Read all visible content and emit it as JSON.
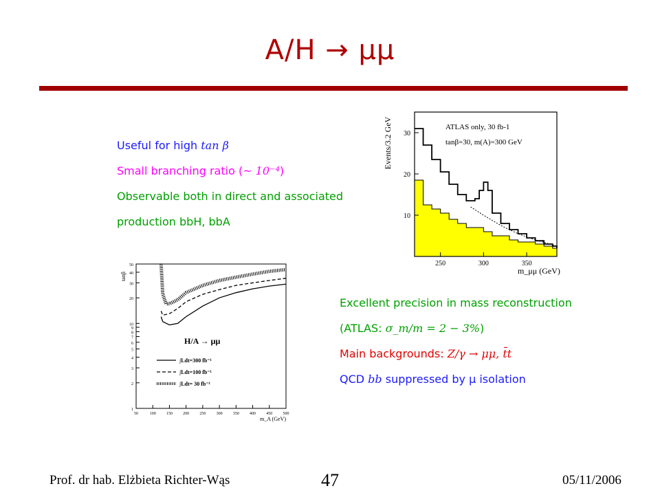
{
  "slide": {
    "title": "A/H → μμ",
    "bullets_top": [
      {
        "text_before": "Useful for high ",
        "math": "tan β",
        "text_after": "",
        "color": "#1a1aff"
      },
      {
        "text_before": "Small branching ratio (",
        "math": "~ 10⁻⁴",
        "text_after": ")",
        "color": "#ff00ff"
      },
      {
        "text_before": "Observable both in direct and associated",
        "math": "",
        "text_after": "",
        "color": "#00a000"
      },
      {
        "text_before": "production bbH, bbA",
        "math": "",
        "text_after": "",
        "color": "#00a000"
      }
    ],
    "bullets_bottom": [
      {
        "text_before": "Excellent precision in mass reconstruction",
        "math": "",
        "text_after": "",
        "color": "#00a000"
      },
      {
        "text_before": "(ATLAS: ",
        "math": "σ_m/m = 2 − 3%",
        "text_after": ")",
        "color": "#00a000"
      },
      {
        "text_before": "Main backgrounds: ",
        "math": "Z/γ → μμ, t̄t",
        "text_after": "",
        "color": "#e00000"
      },
      {
        "text_before": "QCD ",
        "math": "bb",
        "text_after": " suppressed by μ isolation",
        "color": "#1a1aff"
      }
    ],
    "footer": {
      "author": "Prof. dr hab. Elżbieta Richter-Wąs",
      "page": "47",
      "date": "05/11/2006"
    },
    "colors": {
      "title": "#b00000",
      "rule": "#a00000",
      "histogram_fill": "#ffff00"
    }
  },
  "chart_data": [
    {
      "type": "area",
      "annotation_lines": [
        "ATLAS only, 30 fb-1",
        "tanβ=30, m(A)=300 GeV"
      ],
      "ylabel": "Events/3.2 GeV",
      "xlabel": "m_μμ (GeV)",
      "xlim": [
        220,
        385
      ],
      "ylim": [
        0,
        35
      ],
      "xticks": [
        250,
        300,
        350
      ],
      "yticks": [
        0,
        10,
        20,
        30
      ],
      "series": [
        {
          "x": [
            220,
            230,
            240,
            250,
            260,
            270,
            280,
            290,
            295,
            300,
            305,
            310,
            320,
            330,
            340,
            350,
            360,
            370,
            380,
            385
          ],
          "y": [
            31,
            27,
            23.5,
            20.5,
            17.5,
            15,
            13.5,
            14,
            16,
            18,
            16,
            10.5,
            8,
            6.5,
            5.5,
            4.5,
            3.8,
            3,
            2.5,
            2
          ]
        },
        {
          "x": [
            220,
            230,
            240,
            250,
            260,
            270,
            280,
            290,
            300,
            310,
            320,
            330,
            340,
            350,
            360,
            370,
            380,
            385
          ],
          "y": [
            18.5,
            12.5,
            11.5,
            10.5,
            9,
            8,
            7,
            7,
            6,
            5,
            5,
            4,
            3.5,
            3.5,
            3,
            2.5,
            2,
            2
          ]
        },
        {
          "x": [
            285,
            300,
            320,
            340,
            360,
            385
          ],
          "y": [
            12,
            10,
            7.5,
            5.5,
            4,
            2.5
          ]
        }
      ]
    },
    {
      "type": "line",
      "ylabel": "tanβ",
      "xlabel": "m_A (GeV)",
      "inset_title": "H/A → μμ",
      "xlim": [
        50,
        500
      ],
      "ylim": [
        1,
        50
      ],
      "yscale": "log",
      "xticks": [
        50,
        100,
        150,
        200,
        250,
        300,
        350,
        400,
        450,
        500
      ],
      "yticks": [
        1,
        2,
        3,
        4,
        5,
        6,
        7,
        8,
        9,
        10,
        20,
        30,
        40,
        50
      ],
      "series": [
        {
          "name": "∫Ldt=300 fb⁻¹",
          "style": "solid",
          "x": [
            125,
            130,
            150,
            175,
            200,
            250,
            300,
            350,
            400,
            450,
            500
          ],
          "y": [
            12,
            10.5,
            9.6,
            10,
            12,
            16,
            20,
            23,
            25.5,
            27.5,
            29
          ]
        },
        {
          "name": "∫Ldt=100 fb⁻¹",
          "style": "dashed",
          "x": [
            125,
            130,
            150,
            175,
            200,
            250,
            300,
            350,
            400,
            450,
            500
          ],
          "y": [
            14,
            12.5,
            13,
            15,
            18,
            22,
            25,
            28,
            30,
            32,
            34
          ]
        },
        {
          "name": "∫Ldt= 30 fb⁻¹",
          "style": "hatched",
          "x": [
            125,
            130,
            140,
            150,
            175,
            200,
            250,
            300,
            350,
            400,
            450,
            500
          ],
          "y": [
            50,
            22,
            17,
            17,
            19,
            23,
            28,
            32,
            35,
            38,
            41,
            43
          ]
        }
      ]
    }
  ]
}
